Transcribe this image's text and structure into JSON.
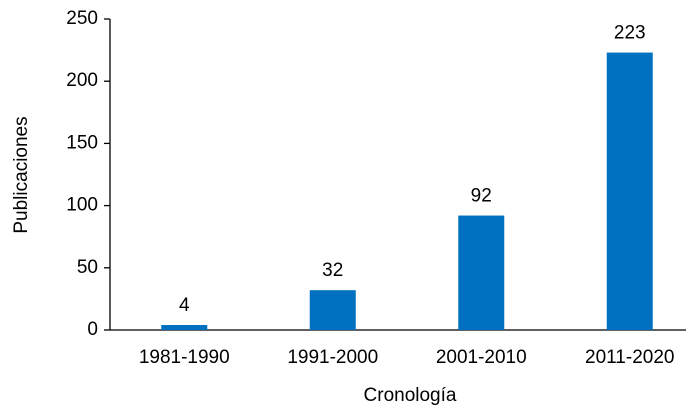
{
  "chart_data": {
    "type": "bar",
    "categories": [
      "1981-1990",
      "1991-2000",
      "2001-2010",
      "2011-2020"
    ],
    "values": [
      4,
      32,
      92,
      223
    ],
    "color": "#0070c0",
    "ylim": [
      0,
      250
    ],
    "yticks": [
      0,
      50,
      100,
      150,
      200,
      250
    ],
    "xlabel": "Cronología",
    "ylabel": "Publicaciones"
  }
}
